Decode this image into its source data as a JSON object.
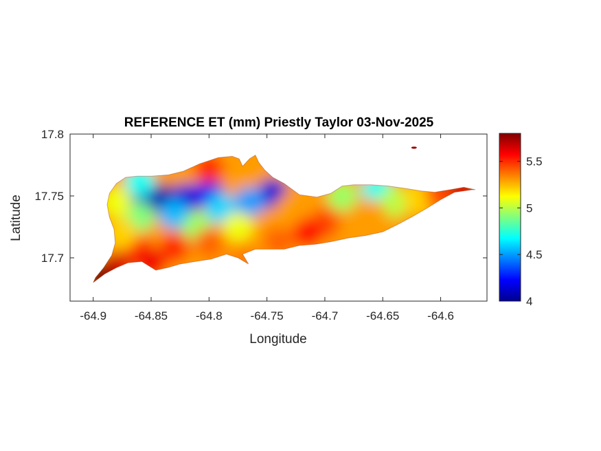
{
  "chart_data": {
    "type": "heatmap",
    "title": "REFERENCE ET (mm) Priestly Taylor 03-Nov-2025",
    "xlabel": "Longitude",
    "ylabel": "Latitude",
    "xlim": [
      -64.92,
      -64.56
    ],
    "ylim": [
      17.665,
      17.8
    ],
    "xticks": [
      -64.9,
      -64.85,
      -64.8,
      -64.75,
      -64.7,
      -64.65,
      -64.6
    ],
    "xtick_labels": [
      "-64.9",
      "-64.85",
      "-64.8",
      "-64.75",
      "-64.7",
      "-64.65",
      "-64.6"
    ],
    "yticks": [
      17.7,
      17.75,
      17.8
    ],
    "ytick_labels": [
      "17.7",
      "17.75",
      "17.8"
    ],
    "colorbar": {
      "colormap": "jet",
      "range": [
        4,
        5.8
      ],
      "ticks": [
        4,
        4.5,
        5,
        5.5
      ],
      "tick_labels": [
        "4",
        "4.5",
        "5",
        "5.5"
      ]
    },
    "grid": false,
    "region_outline": [
      [
        -64.9,
        17.68
      ],
      [
        -64.89,
        17.687
      ],
      [
        -64.88,
        17.692
      ],
      [
        -64.87,
        17.696
      ],
      [
        -64.858,
        17.697
      ],
      [
        -64.846,
        17.69
      ],
      [
        -64.836,
        17.692
      ],
      [
        -64.825,
        17.695
      ],
      [
        -64.812,
        17.697
      ],
      [
        -64.798,
        17.699
      ],
      [
        -64.785,
        17.703
      ],
      [
        -64.775,
        17.7
      ],
      [
        -64.766,
        17.695
      ],
      [
        -64.771,
        17.703
      ],
      [
        -64.76,
        17.707
      ],
      [
        -64.748,
        17.707
      ],
      [
        -64.735,
        17.707
      ],
      [
        -64.722,
        17.71
      ],
      [
        -64.708,
        17.711
      ],
      [
        -64.695,
        17.713
      ],
      [
        -64.68,
        17.716
      ],
      [
        -64.665,
        17.718
      ],
      [
        -64.65,
        17.721
      ],
      [
        -64.637,
        17.727
      ],
      [
        -64.625,
        17.733
      ],
      [
        -64.612,
        17.74
      ],
      [
        -64.6,
        17.747
      ],
      [
        -64.588,
        17.753
      ],
      [
        -64.573,
        17.755
      ],
      [
        -64.57,
        17.755
      ],
      [
        -64.58,
        17.757
      ],
      [
        -64.592,
        17.755
      ],
      [
        -64.605,
        17.753
      ],
      [
        -64.617,
        17.754
      ],
      [
        -64.63,
        17.756
      ],
      [
        -64.645,
        17.758
      ],
      [
        -64.66,
        17.759
      ],
      [
        -64.675,
        17.759
      ],
      [
        -64.685,
        17.758
      ],
      [
        -64.695,
        17.752
      ],
      [
        -64.707,
        17.749
      ],
      [
        -64.722,
        17.751
      ],
      [
        -64.735,
        17.76
      ],
      [
        -64.745,
        17.765
      ],
      [
        -64.752,
        17.771
      ],
      [
        -64.757,
        17.777
      ],
      [
        -64.76,
        17.783
      ],
      [
        -64.765,
        17.78
      ],
      [
        -64.771,
        17.774
      ],
      [
        -64.774,
        17.78
      ],
      [
        -64.78,
        17.782
      ],
      [
        -64.792,
        17.781
      ],
      [
        -64.808,
        17.776
      ],
      [
        -64.822,
        17.77
      ],
      [
        -64.835,
        17.767
      ],
      [
        -64.85,
        17.766
      ],
      [
        -64.862,
        17.766
      ],
      [
        -64.872,
        17.765
      ],
      [
        -64.88,
        17.76
      ],
      [
        -64.886,
        17.752
      ],
      [
        -64.888,
        17.743
      ],
      [
        -64.886,
        17.733
      ],
      [
        -64.882,
        17.723
      ],
      [
        -64.881,
        17.712
      ],
      [
        -64.884,
        17.702
      ],
      [
        -64.891,
        17.692
      ],
      [
        -64.898,
        17.684
      ]
    ],
    "field_samples": [
      {
        "lon": -64.84,
        "lat": 17.747,
        "value": 4.05
      },
      {
        "lon": -64.82,
        "lat": 17.748,
        "value": 4.15
      },
      {
        "lon": -64.855,
        "lat": 17.75,
        "value": 4.1
      },
      {
        "lon": -64.8,
        "lat": 17.752,
        "value": 4.2
      },
      {
        "lon": -64.745,
        "lat": 17.752,
        "value": 4.15
      },
      {
        "lon": -64.765,
        "lat": 17.745,
        "value": 4.5
      },
      {
        "lon": -64.83,
        "lat": 17.735,
        "value": 4.55
      },
      {
        "lon": -64.79,
        "lat": 17.74,
        "value": 4.6
      },
      {
        "lon": -64.86,
        "lat": 17.733,
        "value": 4.9
      },
      {
        "lon": -64.81,
        "lat": 17.725,
        "value": 4.95
      },
      {
        "lon": -64.86,
        "lat": 17.762,
        "value": 4.7
      },
      {
        "lon": -64.775,
        "lat": 17.725,
        "value": 5.1
      },
      {
        "lon": -64.73,
        "lat": 17.74,
        "value": 5.3
      },
      {
        "lon": -64.8,
        "lat": 17.772,
        "value": 5.5
      },
      {
        "lon": -64.655,
        "lat": 17.755,
        "value": 4.7
      },
      {
        "lon": -64.685,
        "lat": 17.75,
        "value": 4.95
      },
      {
        "lon": -64.64,
        "lat": 17.745,
        "value": 5.0
      },
      {
        "lon": -64.7,
        "lat": 17.728,
        "value": 5.45
      },
      {
        "lon": -64.66,
        "lat": 17.735,
        "value": 5.3
      },
      {
        "lon": -64.62,
        "lat": 17.748,
        "value": 5.2
      },
      {
        "lon": -64.6,
        "lat": 17.752,
        "value": 5.45
      },
      {
        "lon": -64.58,
        "lat": 17.755,
        "value": 5.65
      },
      {
        "lon": -64.715,
        "lat": 17.72,
        "value": 5.55
      },
      {
        "lon": -64.74,
        "lat": 17.713,
        "value": 5.4
      },
      {
        "lon": -64.83,
        "lat": 17.708,
        "value": 5.5
      },
      {
        "lon": -64.8,
        "lat": 17.712,
        "value": 5.4
      },
      {
        "lon": -64.86,
        "lat": 17.705,
        "value": 5.5
      },
      {
        "lon": -64.88,
        "lat": 17.692,
        "value": 5.65
      },
      {
        "lon": -64.895,
        "lat": 17.684,
        "value": 5.8
      },
      {
        "lon": -64.85,
        "lat": 17.695,
        "value": 5.6
      },
      {
        "lon": -64.88,
        "lat": 17.745,
        "value": 5.1
      },
      {
        "lon": -64.875,
        "lat": 17.72,
        "value": 5.2
      },
      {
        "lon": -64.77,
        "lat": 17.7,
        "value": 5.35
      }
    ],
    "islet": {
      "lon": -64.623,
      "lat": 17.789,
      "value": 5.75
    }
  }
}
